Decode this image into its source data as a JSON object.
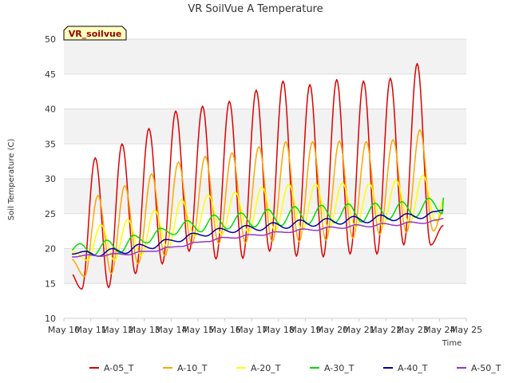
{
  "chart_data": {
    "type": "line",
    "title": "VR SoilVue A Temperature",
    "xlabel": "Time",
    "ylabel": "Soil Temperature (C)",
    "badge": "VR_soilvue",
    "ylim": [
      10,
      50
    ],
    "yticks": [
      10,
      15,
      20,
      25,
      30,
      35,
      40,
      45,
      50
    ],
    "xlim": [
      10,
      25
    ],
    "xticks": [
      {
        "v": 10,
        "label": "May 10"
      },
      {
        "v": 11,
        "label": "May 11"
      },
      {
        "v": 12,
        "label": "May 12"
      },
      {
        "v": 13,
        "label": "May 13"
      },
      {
        "v": 14,
        "label": "May 14"
      },
      {
        "v": 15,
        "label": "May 15"
      },
      {
        "v": 16,
        "label": "May 16"
      },
      {
        "v": 17,
        "label": "May 17"
      },
      {
        "v": 18,
        "label": "May 18"
      },
      {
        "v": 19,
        "label": "May 19"
      },
      {
        "v": 20,
        "label": "May 20"
      },
      {
        "v": 21,
        "label": "May 21"
      },
      {
        "v": 22,
        "label": "May 22"
      },
      {
        "v": 23,
        "label": "May 23"
      },
      {
        "v": 24,
        "label": "May 24"
      },
      {
        "v": 25,
        "label": "May 25"
      }
    ],
    "legend_position": "bottom",
    "series": [
      {
        "name": "A-05_T",
        "color": "#dd0000",
        "peak_time": 0.17,
        "x_start": 10.3,
        "x_end": 24.15,
        "end_value": 23.3,
        "days": [
          10,
          11,
          12,
          13,
          14,
          15,
          16,
          17,
          18,
          19,
          20,
          21,
          22,
          23,
          24
        ],
        "highs": [
          17.0,
          33.0,
          35.0,
          37.2,
          39.7,
          40.4,
          41.1,
          42.7,
          44.0,
          43.5,
          44.2,
          44.0,
          44.4,
          46.5,
          45.1
        ],
        "lows": [
          14.2,
          14.4,
          16.4,
          17.8,
          19.6,
          18.5,
          18.6,
          19.6,
          18.9,
          18.8,
          19.2,
          19.2,
          20.5,
          20.5,
          23.3
        ]
      },
      {
        "name": "A-10_T",
        "color": "#ffa500",
        "peak_time": 0.27,
        "x_start": 10.3,
        "x_end": 24.15,
        "end_value": 25.5,
        "days": [
          10,
          11,
          12,
          13,
          14,
          15,
          16,
          17,
          18,
          19,
          20,
          21,
          22,
          23,
          24
        ],
        "highs": [
          18.5,
          27.6,
          29.0,
          30.7,
          32.4,
          33.2,
          33.7,
          34.6,
          35.3,
          35.3,
          35.4,
          35.3,
          35.6,
          37.0,
          36.1
        ],
        "lows": [
          16.0,
          16.4,
          17.8,
          18.9,
          20.6,
          20.7,
          20.8,
          21.0,
          21.0,
          21.2,
          21.5,
          22.0,
          22.3,
          22.5,
          25.5
        ]
      },
      {
        "name": "A-20_T",
        "color": "#ffff00",
        "peak_time": 0.38,
        "x_start": 10.3,
        "x_end": 24.15,
        "end_value": 27.0,
        "days": [
          10,
          11,
          12,
          13,
          14,
          15,
          16,
          17,
          18,
          19,
          20,
          21,
          22,
          23,
          24
        ],
        "highs": [
          19.5,
          23.4,
          24.2,
          25.5,
          27.0,
          27.7,
          28.1,
          28.8,
          29.2,
          29.3,
          29.4,
          29.3,
          29.8,
          30.5,
          30.2
        ],
        "lows": [
          18.3,
          18.3,
          19.0,
          20.0,
          21.8,
          22.0,
          22.3,
          22.5,
          22.6,
          22.8,
          23.0,
          23.2,
          23.5,
          23.8,
          24.5
        ]
      },
      {
        "name": "A-30_T",
        "color": "#00dd00",
        "peak_time": 0.6,
        "x_start": 10.3,
        "x_end": 24.15,
        "end_value": 27.3,
        "days": [
          10,
          11,
          12,
          13,
          14,
          15,
          16,
          17,
          18,
          19,
          20,
          21,
          22,
          23,
          24
        ],
        "highs": [
          20.7,
          21.2,
          21.9,
          22.9,
          24.0,
          24.8,
          25.1,
          25.6,
          26.0,
          26.2,
          26.4,
          26.5,
          26.7,
          27.2,
          27.4
        ],
        "lows": [
          19.2,
          19.0,
          19.4,
          20.8,
          22.0,
          22.4,
          22.8,
          23.1,
          23.3,
          23.5,
          23.7,
          23.8,
          24.2,
          24.5,
          25.0
        ]
      },
      {
        "name": "A-40_T",
        "color": "#0000aa",
        "peak_time": 0.8,
        "x_start": 10.3,
        "x_end": 24.15,
        "end_value": 25.5,
        "days": [
          10,
          11,
          12,
          13,
          14,
          15,
          16,
          17,
          18,
          19,
          20,
          21,
          22,
          23,
          24
        ],
        "highs": [
          19.6,
          20.0,
          20.6,
          21.3,
          22.2,
          22.9,
          23.3,
          23.7,
          24.1,
          24.3,
          24.6,
          24.8,
          25.0,
          25.3,
          25.5
        ],
        "lows": [
          19.2,
          18.9,
          19.3,
          20.0,
          21.0,
          21.8,
          22.3,
          22.6,
          22.9,
          23.2,
          23.5,
          23.7,
          24.0,
          24.3,
          24.6
        ]
      },
      {
        "name": "A-50_T",
        "color": "#9933cc",
        "peak_time": 0.9,
        "x_start": 10.3,
        "x_end": 24.15,
        "end_value": 24.3,
        "days": [
          10,
          11,
          12,
          13,
          14,
          15,
          16,
          17,
          18,
          19,
          20,
          21,
          22,
          23,
          24
        ],
        "highs": [
          19.1,
          19.3,
          19.6,
          20.2,
          20.9,
          21.6,
          22.0,
          22.4,
          22.8,
          23.1,
          23.4,
          23.6,
          23.8,
          24.1,
          24.3
        ],
        "lows": [
          18.8,
          18.9,
          19.1,
          19.6,
          20.3,
          21.0,
          21.5,
          21.9,
          22.3,
          22.6,
          22.9,
          23.1,
          23.3,
          23.6,
          23.9
        ]
      }
    ]
  }
}
